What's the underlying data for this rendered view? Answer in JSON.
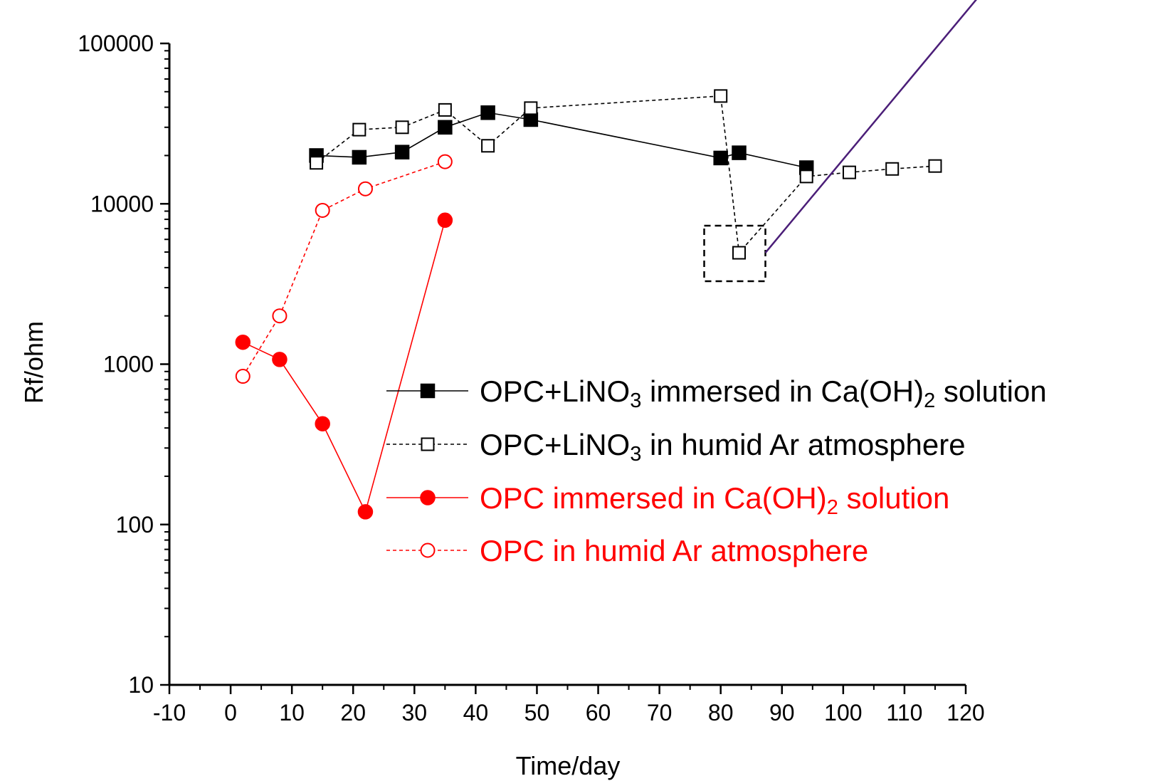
{
  "chart_data": {
    "type": "scatter",
    "xlabel": "Time/day",
    "ylabel": "Rf/ohm",
    "xlim": [
      -10,
      120
    ],
    "ylim": [
      10,
      100000
    ],
    "yscale": "log",
    "x_ticks": [
      "-10",
      "0",
      "10",
      "20",
      "30",
      "40",
      "50",
      "60",
      "70",
      "80",
      "90",
      "100",
      "110",
      "120"
    ],
    "y_ticks": [
      "10",
      "100",
      "1000",
      "10000",
      "100000"
    ],
    "legend_position": "center-right",
    "series": [
      {
        "key": "s1",
        "color": "#000000",
        "marker": "filled-square",
        "line": "solid",
        "x": [
          14,
          21,
          28,
          35,
          42,
          49,
          80,
          83,
          94
        ],
        "y": [
          20000,
          19500,
          21000,
          30000,
          37000,
          33500,
          19300,
          20800,
          16800
        ]
      },
      {
        "key": "s2",
        "color": "#000000",
        "marker": "open-square",
        "line": "dashed",
        "x": [
          14,
          21,
          28,
          35,
          42,
          49,
          80,
          83,
          94,
          101,
          108,
          115
        ],
        "y": [
          18000,
          29000,
          30000,
          38500,
          23000,
          39500,
          47000,
          4950,
          14800,
          15700,
          16500,
          17200
        ]
      },
      {
        "key": "s3",
        "color": "#ff0000",
        "marker": "filled-circle",
        "line": "solid",
        "x": [
          2,
          8,
          15,
          22,
          35
        ],
        "y": [
          1370,
          1070,
          425,
          120,
          7900
        ]
      },
      {
        "key": "s4",
        "color": "#ff0000",
        "marker": "open-circle",
        "line": "dashed",
        "x": [
          2,
          8,
          15,
          22,
          35
        ],
        "y": [
          840,
          2000,
          9100,
          12400,
          18300
        ]
      }
    ],
    "legend": [
      {
        "series": "s1",
        "prefix": "OPC+LiNO",
        "sub1": "3",
        "mid": " immersed in Ca(OH)",
        "sub2": "2",
        "suffix": " solution",
        "color": "#000000"
      },
      {
        "series": "s2",
        "prefix": "OPC+LiNO",
        "sub1": "3",
        "mid": " in humid Ar atmosphere",
        "sub2": "",
        "suffix": "",
        "color": "#000000"
      },
      {
        "series": "s3",
        "prefix": "OPC immersed in Ca(OH)",
        "sub1": "2",
        "mid": " solution",
        "sub2": "",
        "suffix": "",
        "color": "#ff0000"
      },
      {
        "series": "s4",
        "prefix": "OPC in humid Ar atmosphere",
        "sub1": "",
        "mid": "",
        "sub2": "",
        "suffix": "",
        "color": "#ff0000"
      }
    ],
    "annotation": {
      "box_center": [
        83,
        4950
      ],
      "arrow_color": "#4b1e78"
    }
  }
}
